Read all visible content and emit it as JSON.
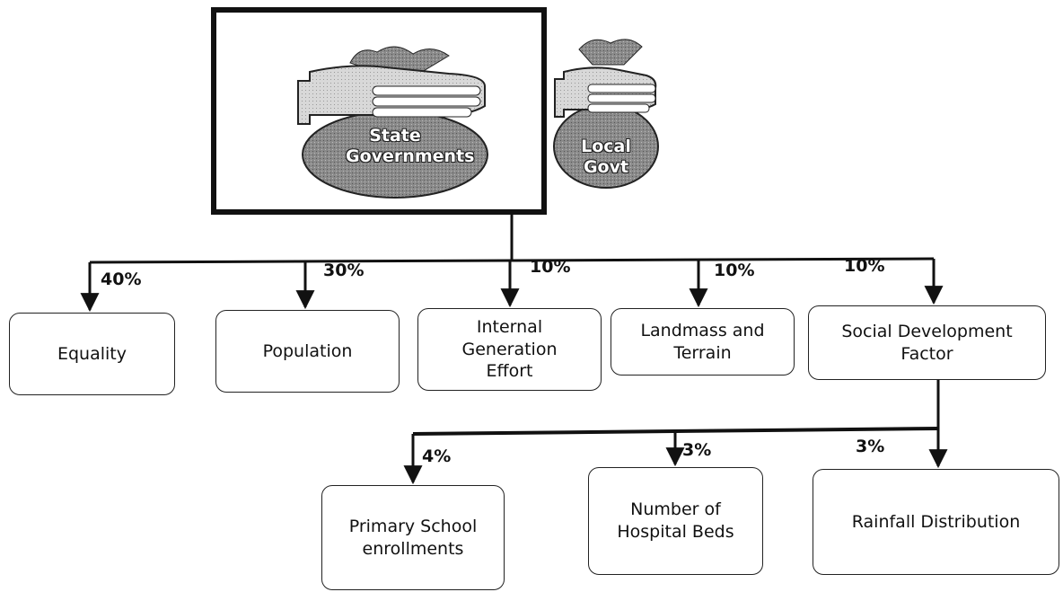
{
  "header": {
    "bags": [
      "State Governments",
      "Local Govt"
    ]
  },
  "factors": [
    {
      "label": "Equality",
      "share": "40%"
    },
    {
      "label": "Population",
      "share": "30%"
    },
    {
      "label": "Internal Generation Effort",
      "share": "10%"
    },
    {
      "label": "Landmass and Terrain",
      "share": "10%"
    },
    {
      "label": "Social Development Factor",
      "share": "10%"
    }
  ],
  "sub_factors": [
    {
      "label": "Primary School enrollments",
      "share": "4%"
    },
    {
      "label": "Number of Hospital Beds",
      "share": "3%"
    },
    {
      "label": "Rainfall Distribution",
      "share": "3%"
    }
  ]
}
